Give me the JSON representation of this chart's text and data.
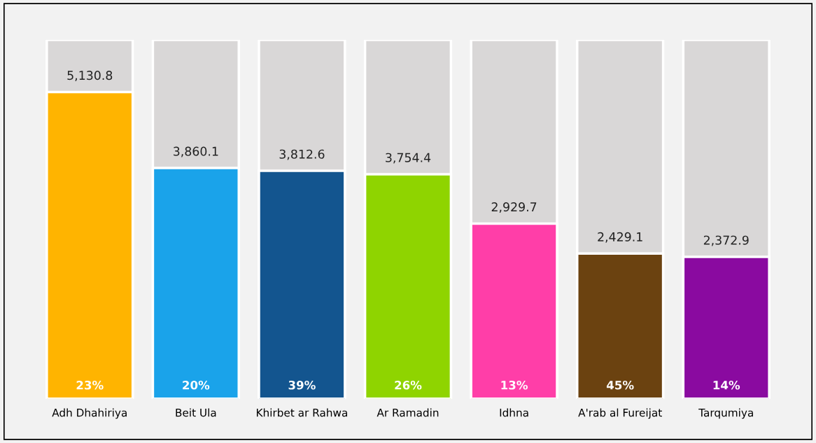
{
  "chart_data": {
    "type": "bar",
    "categories": [
      "Adh Dhahiriya",
      "Beit Ula",
      "Khirbet ar Rahwa",
      "Ar Ramadin",
      "Idhna",
      "A'rab al Fureijat",
      "Tarqumiya"
    ],
    "values": [
      5130.8,
      3860.1,
      3812.6,
      3754.4,
      2929.7,
      2429.1,
      2372.9
    ],
    "value_labels": [
      "5,130.8",
      "3,860.1",
      "3,812.6",
      "3,754.4",
      "2,929.7",
      "2,429.1",
      "2,372.9"
    ],
    "colors": [
      "#ffb400",
      "#1aa3ea",
      "#13558f",
      "#8fd400",
      "#ff3ea8",
      "#6b4210",
      "#8a0aa0"
    ],
    "annotations": [
      "23%",
      "20%",
      "39%",
      "26%",
      "13%",
      "45%",
      "14%"
    ],
    "grid": false,
    "legend": false
  }
}
